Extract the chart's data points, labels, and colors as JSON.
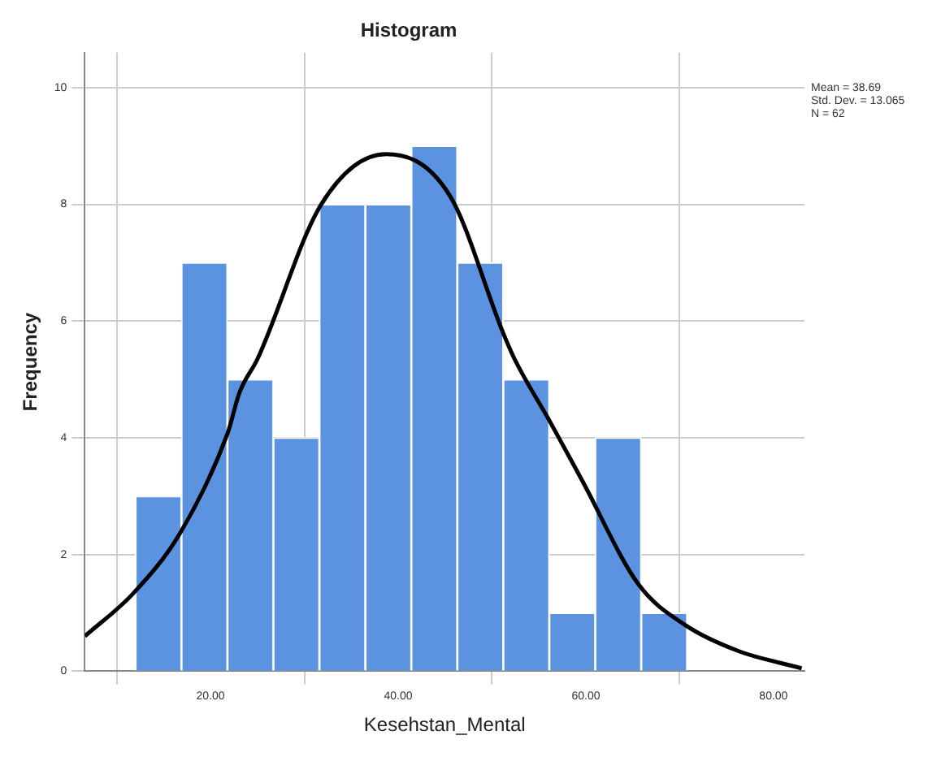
{
  "chart_data": {
    "type": "histogram",
    "title": "Histogram",
    "xlabel": "Kesehstan_Mental",
    "ylabel": "Frequency",
    "bins": [
      12,
      16.9,
      21.8,
      26.7,
      31.6,
      36.5,
      41.4,
      46.3,
      51.2,
      56.1,
      61,
      65.9,
      70.8
    ],
    "values": [
      3,
      7,
      5,
      4,
      8,
      8,
      9,
      7,
      5,
      1,
      4,
      1
    ],
    "color": "#5b93e0",
    "series": [
      {
        "type": "line",
        "color": "#000000",
        "x": [
          6.6,
          11.8,
          16.8,
          21.8,
          23.1,
          25,
          31.8,
          38.7,
          45.5,
          51.2,
          52.4,
          56.2,
          59.6,
          65.6,
          70.6,
          76.2,
          83
        ],
        "values": [
          0.6,
          1.34,
          2.38,
          4.07,
          4.78,
          5.35,
          8,
          8.86,
          8.15,
          5.79,
          5.35,
          4.27,
          3.27,
          1.49,
          0.79,
          0.35,
          0.05
        ]
      }
    ],
    "xlim": [
      6.6,
      83.3
    ],
    "xticks": [
      {
        "value": 20,
        "label": "20.00"
      },
      {
        "value": 40,
        "label": "40.00"
      },
      {
        "value": 60,
        "label": "60.00"
      },
      {
        "value": 80,
        "label": "80.00"
      }
    ],
    "ylim": [
      0,
      10.6
    ],
    "yticks": [
      0,
      2,
      4,
      6,
      8,
      10
    ],
    "grid": true,
    "annotations": [
      "Mean = 38.69",
      "Std. Dev. = 13.065",
      "N = 62"
    ]
  }
}
